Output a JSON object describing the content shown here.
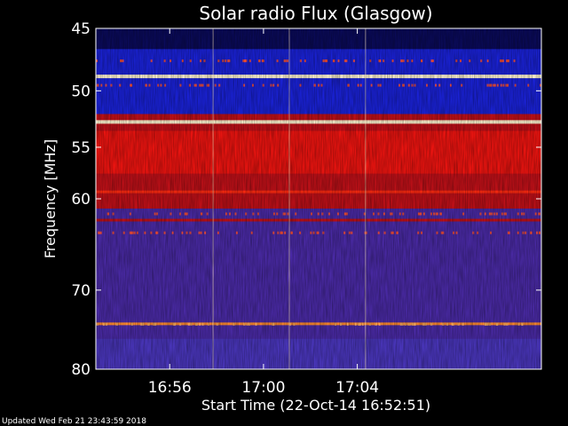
{
  "chart_data": {
    "type": "heatmap",
    "title": "Solar radio Flux (Glasgow)",
    "xlabel": "Start Time (22-Oct-14 16:52:51)",
    "ylabel": "Frequency [MHz]",
    "xlim": [
      "16:52:51",
      "17:11:51"
    ],
    "ylim": [
      45,
      80
    ],
    "y_scale": "log",
    "x_ticks": [
      "16:56",
      "17:00",
      "17:04"
    ],
    "y_ticks": [
      45,
      50,
      55,
      60,
      70,
      80
    ],
    "colormap": "blue-red-white",
    "segment_breaks": [
      "16:57:51",
      "17:01:06",
      "17:04:21"
    ],
    "bands": [
      {
        "freq": 48.8,
        "level": "white"
      },
      {
        "freq": 52.7,
        "level": "white"
      },
      {
        "freq": 59.3,
        "level": "bright-red"
      },
      {
        "freq": 62.2,
        "level": "red"
      },
      {
        "freq": 74.1,
        "level": "orange"
      }
    ],
    "regions": [
      {
        "from": 45,
        "to": 52,
        "level": "blue"
      },
      {
        "from": 52,
        "to": 61,
        "level": "red"
      },
      {
        "from": 61,
        "to": 80,
        "level": "purple"
      }
    ]
  },
  "footer": {
    "updated": "Updated Wed Feb 21 23:43:59 2018"
  }
}
